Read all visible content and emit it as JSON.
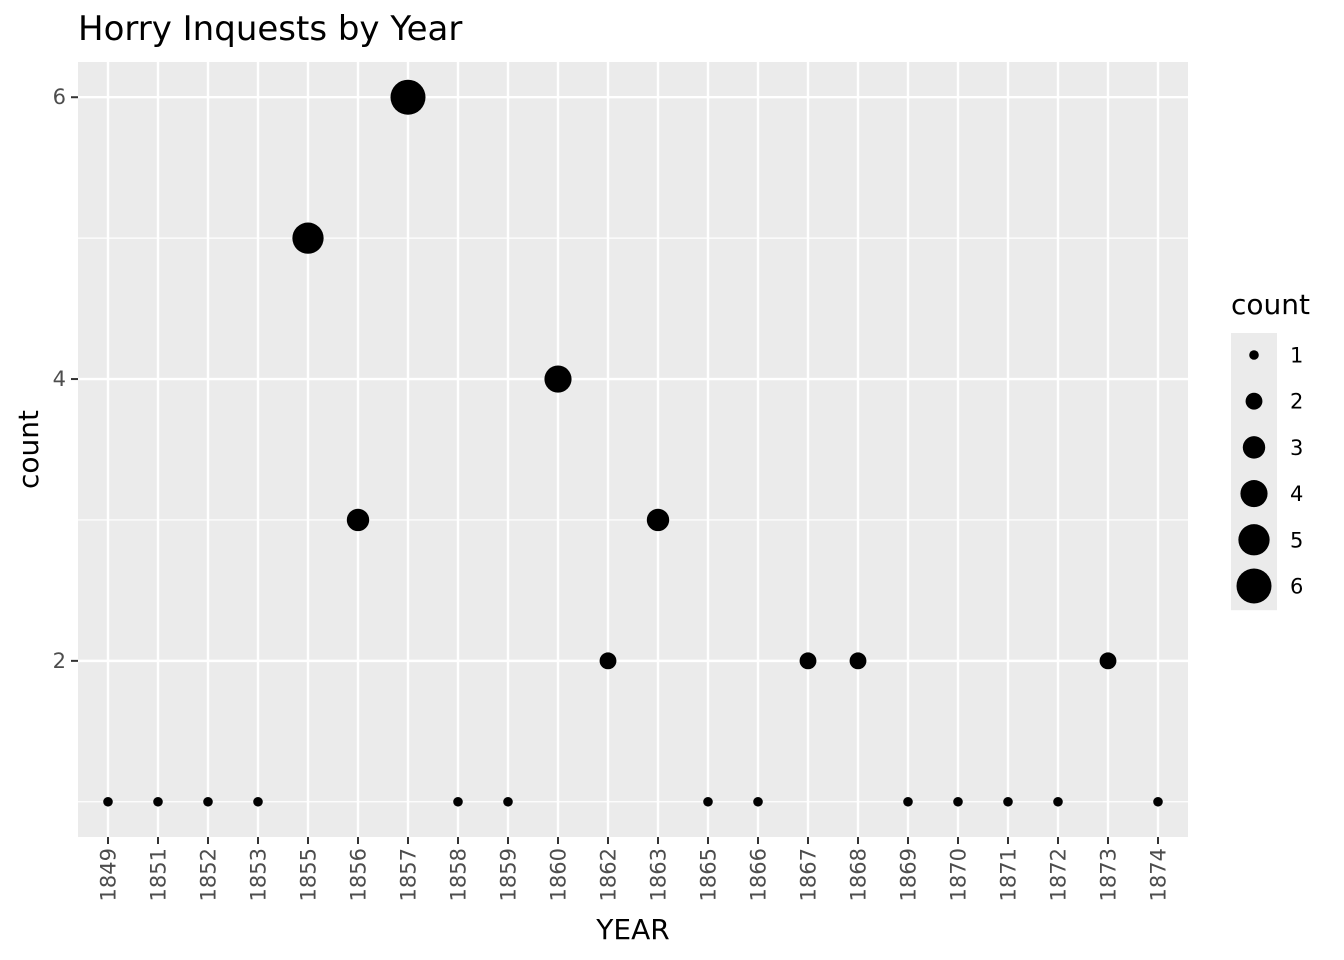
{
  "chart_data": {
    "type": "scatter",
    "title": "Horry Inquests by Year",
    "xlabel": "YEAR",
    "ylabel": "count",
    "categories": [
      "1849",
      "1851",
      "1852",
      "1853",
      "1855",
      "1856",
      "1857",
      "1858",
      "1859",
      "1860",
      "1862",
      "1863",
      "1865",
      "1866",
      "1867",
      "1868",
      "1869",
      "1870",
      "1871",
      "1872",
      "1873",
      "1874"
    ],
    "values": [
      1,
      1,
      1,
      1,
      5,
      3,
      6,
      1,
      1,
      4,
      2,
      3,
      1,
      1,
      2,
      2,
      1,
      1,
      1,
      1,
      2,
      1
    ],
    "ylim": [
      0.75,
      6.25
    ],
    "yticks": [
      2,
      4,
      6
    ],
    "grid": true,
    "size_legend": {
      "title": "count",
      "placement": "right",
      "entries": [
        1,
        2,
        3,
        4,
        5,
        6
      ]
    },
    "colors": {
      "panel": "#ebebeb",
      "grid": "#ffffff",
      "point": "#000000"
    }
  }
}
